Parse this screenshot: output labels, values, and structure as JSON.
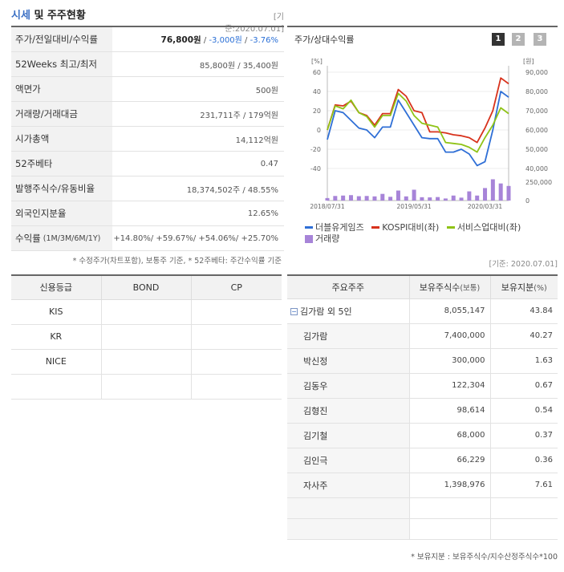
{
  "header": {
    "title_accent": "시세",
    "title_rest": " 및 주주현황",
    "date": "[기준:2020.07.01]"
  },
  "market": {
    "rows": [
      {
        "label": "주가/전일대비/수익률",
        "price": "76,800원",
        "change": "-3,000원",
        "rate": "-3.76%"
      },
      {
        "label": "52Weeks 최고/최저",
        "value": "85,800원 / 35,400원"
      },
      {
        "label": "액면가",
        "value": "500원"
      },
      {
        "label": "거래량/거래대금",
        "value": "231,711주 / 179억원"
      },
      {
        "label": "시가총액",
        "value": "14,112억원"
      },
      {
        "label": "52주베타",
        "value": "0.47"
      },
      {
        "label": "발행주식수/유동비율",
        "value": "18,374,502주 / 48.55%"
      },
      {
        "label": "외국인지분율",
        "value": "12.65%"
      }
    ],
    "returns": {
      "label": "수익률",
      "sub": "(1M/3M/6M/1Y)",
      "value": "+14.80%/ +59.67%/ +54.06%/ +25.70%"
    },
    "note": "* 수정주가(차트포함), 보통주 기준, * 52주베타: 주간수익률 기준"
  },
  "chart_panel": {
    "title": "주가/상대수익률",
    "tabs": [
      "1",
      "2",
      "3"
    ],
    "legend": {
      "s1": "더블유게임즈",
      "s2": "KOSPI대비(좌)",
      "s3": "서비스업대비(좌)",
      "s4": "거래량"
    },
    "date": "[기준: 2020.07.01]"
  },
  "chart_data": {
    "type": "line",
    "left_axis": {
      "unit": "[%]",
      "ticks": [
        60,
        40,
        20,
        0,
        -20,
        -40
      ],
      "range": [
        -40,
        60
      ]
    },
    "right_axis": {
      "unit": "[원]",
      "ticks": [
        "90,000",
        "80,000",
        "70,000",
        "60,000",
        "50,000",
        "40,000"
      ],
      "range": [
        40000,
        90000
      ]
    },
    "volume_axis": {
      "ticks": [
        "250,000",
        "0"
      ],
      "range": [
        0,
        250000
      ]
    },
    "x_labels": [
      "2018/07/31",
      "2019/05/31",
      "2020/03/31"
    ],
    "n_points": 24,
    "series": [
      {
        "name": "더블유게임즈",
        "color": "#2f6fd6",
        "axis": "left",
        "values": [
          -10,
          20,
          18,
          10,
          2,
          0,
          -8,
          3,
          3,
          31,
          18,
          5,
          -8,
          -9,
          -9,
          -23,
          -23,
          -20,
          -25,
          -37,
          -33,
          0,
          40,
          34
        ]
      },
      {
        "name": "KOSPI대비(좌)",
        "color": "#d8321c",
        "axis": "left",
        "values": [
          0,
          26,
          25,
          30,
          18,
          15,
          5,
          17,
          17,
          42,
          35,
          20,
          18,
          -2,
          -2,
          -3,
          -5,
          -6,
          -8,
          -13,
          2,
          20,
          54,
          48
        ]
      },
      {
        "name": "서비스업대비(좌)",
        "color": "#8fc316",
        "axis": "left",
        "values": [
          0,
          25,
          22,
          31,
          18,
          14,
          3,
          15,
          15,
          38,
          30,
          15,
          7,
          5,
          3,
          -13,
          -14,
          -15,
          -18,
          -23,
          -8,
          5,
          23,
          17
        ]
      },
      {
        "name": "거래량",
        "color": "#a784d8",
        "axis": "volume",
        "values": [
          30000,
          55000,
          60000,
          65000,
          52000,
          55000,
          50000,
          80000,
          45000,
          120000,
          50000,
          130000,
          40000,
          38000,
          42000,
          25000,
          60000,
          35000,
          110000,
          60000,
          150000,
          255000,
          205000,
          175000
        ]
      }
    ]
  },
  "credit": {
    "headers": [
      "신용등급",
      "BOND",
      "CP"
    ],
    "rows": [
      [
        "KIS",
        "",
        ""
      ],
      [
        "KR",
        "",
        ""
      ],
      [
        "NICE",
        "",
        ""
      ],
      [
        "",
        "",
        ""
      ]
    ]
  },
  "holders": {
    "headers": {
      "h1": "주요주주",
      "h2": "보유주식수",
      "h2_sub": "(보통)",
      "h3": "보유지분",
      "h3_sub": "(%)"
    },
    "rows": [
      {
        "name": "김가람 외 5인",
        "shares": "8,055,147",
        "pct": "43.84",
        "group": true
      },
      {
        "name": "김가람",
        "shares": "7,400,000",
        "pct": "40.27"
      },
      {
        "name": "박신정",
        "shares": "300,000",
        "pct": "1.63"
      },
      {
        "name": "김동우",
        "shares": "122,304",
        "pct": "0.67"
      },
      {
        "name": "김형진",
        "shares": "98,614",
        "pct": "0.54"
      },
      {
        "name": "김기철",
        "shares": "68,000",
        "pct": "0.37"
      },
      {
        "name": "김인극",
        "shares": "66,229",
        "pct": "0.36"
      },
      {
        "name": "자사주",
        "shares": "1,398,976",
        "pct": "7.61"
      }
    ],
    "note": "* 보유지분 : 보유주식수/지수산정주식수*100"
  }
}
